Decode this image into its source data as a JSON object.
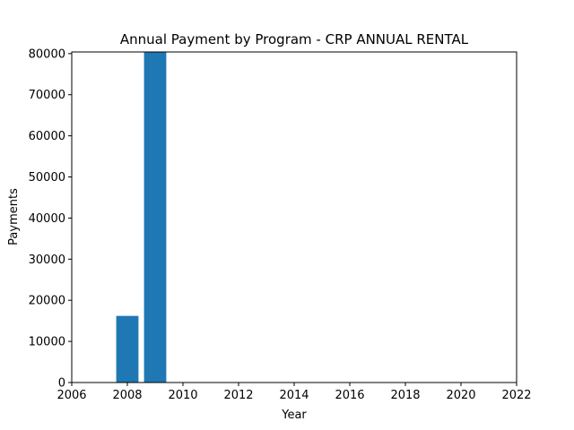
{
  "chart_data": {
    "type": "bar",
    "title": "Annual Payment by Program - CRP ANNUAL RENTAL",
    "xlabel": "Year",
    "ylabel": "Payments",
    "x": [
      2008,
      2009
    ],
    "values": [
      16200,
      80400
    ],
    "xlim": [
      2006,
      2022
    ],
    "ylim": [
      0,
      80400
    ],
    "xticks": [
      2006,
      2008,
      2010,
      2012,
      2014,
      2016,
      2018,
      2020,
      2022
    ],
    "yticks": [
      0,
      10000,
      20000,
      30000,
      40000,
      50000,
      60000,
      70000,
      80000
    ],
    "bar_width": 0.8,
    "bar_color": "#1f77b4",
    "grid": false,
    "legend": "none"
  }
}
